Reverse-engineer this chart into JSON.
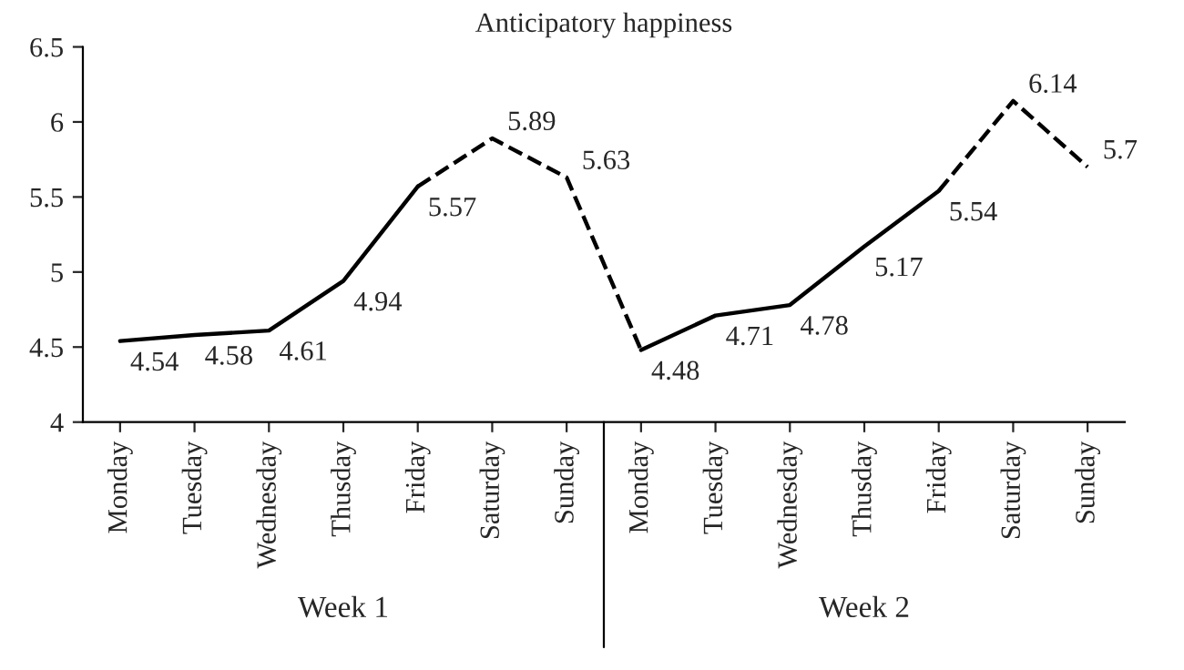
{
  "chart_data": {
    "type": "line",
    "title": "Anticipatory happiness",
    "categories": [
      "Monday",
      "Tuesday",
      "Wednesday",
      "Thusday",
      "Friday",
      "Saturday",
      "Sunday",
      "Monday",
      "Tuesday",
      "Wednesday",
      "Thusday",
      "Friday",
      "Saturday",
      "Sunday"
    ],
    "series": [
      {
        "color": "#000000",
        "line_style": "solid",
        "values": [
          4.54,
          4.58,
          4.61,
          4.94,
          5.57,
          null,
          null,
          4.48,
          4.71,
          4.78,
          5.17,
          5.54,
          null,
          null
        ],
        "value_labels": [
          "4.54",
          "4.58",
          "4.61",
          "4.94",
          "5.57",
          null,
          null,
          "4.48",
          "4.71",
          "4.78",
          "5.17",
          "5.54",
          null,
          null
        ]
      },
      {
        "color": "#000000",
        "line_style": "dashed",
        "values": [
          null,
          null,
          null,
          null,
          5.57,
          5.89,
          5.63,
          4.48,
          null,
          null,
          null,
          5.54,
          6.14,
          5.7
        ],
        "value_labels": [
          null,
          null,
          null,
          null,
          null,
          "5.89",
          "5.63",
          null,
          null,
          null,
          null,
          null,
          "6.14",
          "5.7"
        ]
      }
    ],
    "annotations": [
      "Week 1",
      "Week 2"
    ],
    "ylim": [
      4,
      6.5
    ],
    "yticks": [
      4,
      4.5,
      5,
      5.5,
      6,
      6.5
    ],
    "grid": false,
    "legend": false,
    "marker": "none"
  }
}
